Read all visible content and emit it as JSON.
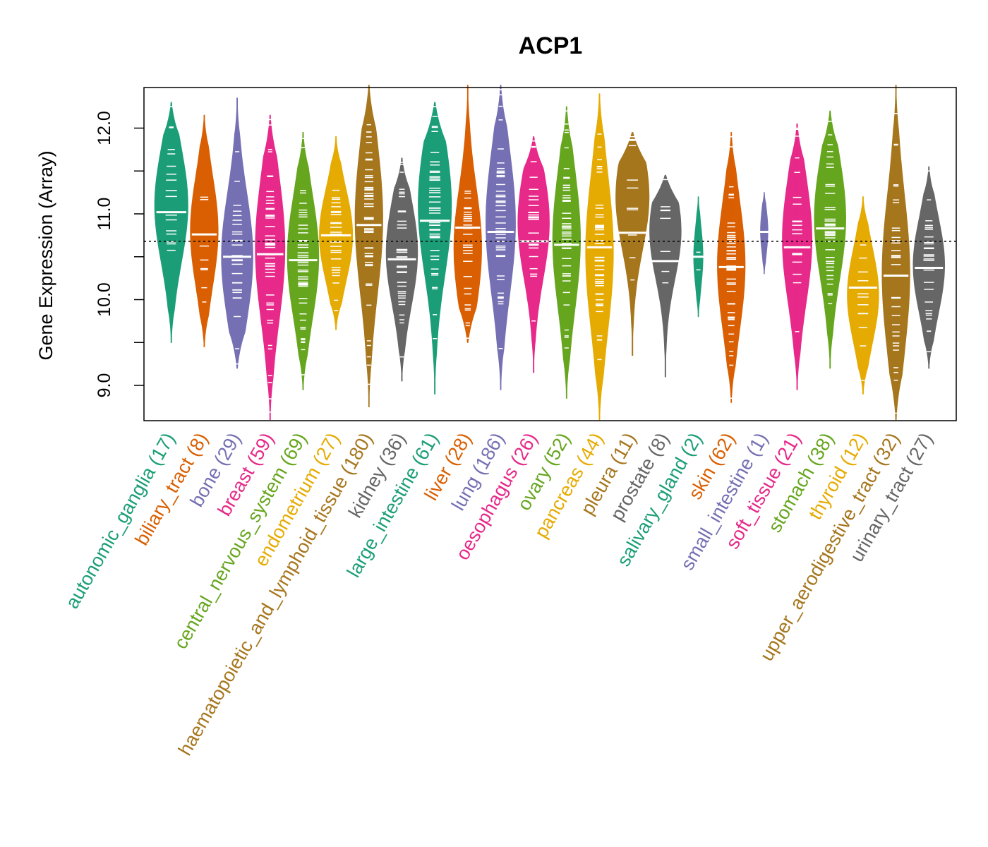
{
  "chart_data": {
    "type": "beanplot",
    "title": "ACP1",
    "xlabel": "",
    "ylabel": "Gene Expression (Array)",
    "ylim": [
      8.6,
      12.5
    ],
    "yticks": [
      9.0,
      9.5,
      10.0,
      10.5,
      11.0,
      11.5,
      12.0
    ],
    "ytick_labels": [
      "9.0",
      "10.0",
      "11.0",
      "12.0"
    ],
    "overall_median": 10.68,
    "grid": false,
    "legend": "none",
    "categories": [
      {
        "name": "autonomic_ganglia",
        "n": 17,
        "label": "autonomic_ganglia (17)",
        "color": "#1B9E77",
        "min": 9.5,
        "max": 12.3,
        "mode": 11.1,
        "width": 0.9,
        "median": 11.02
      },
      {
        "name": "biliary_tract",
        "n": 8,
        "label": "biliary_tract (8)",
        "color": "#D95F02",
        "min": 9.45,
        "max": 12.15,
        "mode": 10.8,
        "width": 0.75,
        "median": 10.76
      },
      {
        "name": "bone",
        "n": 29,
        "label": "bone (29)",
        "color": "#7570B3",
        "min": 9.2,
        "max": 12.35,
        "mode": 10.5,
        "width": 0.85,
        "median": 10.5
      },
      {
        "name": "breast",
        "n": 59,
        "label": "breast (59)",
        "color": "#E7298A",
        "min": 8.6,
        "max": 12.15,
        "mode": 10.6,
        "width": 0.8,
        "median": 10.53
      },
      {
        "name": "central_nervous_system",
        "n": 69,
        "label": "central_nervous_system (69)",
        "color": "#66A61E",
        "min": 8.95,
        "max": 11.95,
        "mode": 10.5,
        "width": 0.85,
        "median": 10.46
      },
      {
        "name": "endometrium",
        "n": 27,
        "label": "endometrium (27)",
        "color": "#E6AB02",
        "min": 9.65,
        "max": 11.9,
        "mode": 10.75,
        "width": 0.9,
        "median": 10.75
      },
      {
        "name": "haematopoietic_and_lymphoid_tissue",
        "n": 180,
        "label": "haematopoietic_and_lymphoid_tissue (180)",
        "color": "#A6761D",
        "min": 8.75,
        "max": 12.5,
        "mode": 10.95,
        "width": 0.75,
        "median": 10.87
      },
      {
        "name": "kidney",
        "n": 36,
        "label": "kidney (36)",
        "color": "#666666",
        "min": 9.05,
        "max": 11.65,
        "mode": 10.55,
        "width": 0.85,
        "median": 10.47
      },
      {
        "name": "large_intestine",
        "n": 61,
        "label": "large_intestine (61)",
        "color": "#1B9E77",
        "min": 8.9,
        "max": 12.3,
        "mode": 11.1,
        "width": 0.9,
        "median": 10.92
      },
      {
        "name": "liver",
        "n": 28,
        "label": "liver (28)",
        "color": "#D95F02",
        "min": 9.5,
        "max": 12.5,
        "mode": 10.6,
        "width": 0.75,
        "median": 10.84
      },
      {
        "name": "lung",
        "n": 186,
        "label": "lung (186)",
        "color": "#7570B3",
        "min": 8.95,
        "max": 12.5,
        "mode": 10.9,
        "width": 0.8,
        "median": 10.79
      },
      {
        "name": "oesophagus",
        "n": 26,
        "label": "oesophagus (26)",
        "color": "#E7298A",
        "min": 9.15,
        "max": 11.9,
        "mode": 10.9,
        "width": 0.85,
        "median": 10.68
      },
      {
        "name": "ovary",
        "n": 52,
        "label": "ovary (52)",
        "color": "#66A61E",
        "min": 8.85,
        "max": 12.25,
        "mode": 10.7,
        "width": 0.75,
        "median": 10.64
      },
      {
        "name": "pancreas",
        "n": 44,
        "label": "pancreas (44)",
        "color": "#E6AB02",
        "min": 8.6,
        "max": 12.4,
        "mode": 10.55,
        "width": 0.75,
        "median": 10.61
      },
      {
        "name": "pleura",
        "n": 11,
        "label": "pleura (11)",
        "color": "#A6761D",
        "min": 9.35,
        "max": 11.95,
        "mode": 11.2,
        "width": 0.9,
        "median": 10.78
      },
      {
        "name": "prostate",
        "n": 8,
        "label": "prostate (8)",
        "color": "#666666",
        "min": 9.1,
        "max": 11.45,
        "mode": 10.8,
        "width": 0.85,
        "median": 10.45
      },
      {
        "name": "salivary_gland",
        "n": 2,
        "label": "salivary_gland (2)",
        "color": "#1B9E77",
        "min": 9.8,
        "max": 11.2,
        "mode": 10.5,
        "width": 0.25,
        "median": 10.5
      },
      {
        "name": "skin",
        "n": 62,
        "label": "skin (62)",
        "color": "#D95F02",
        "min": 8.8,
        "max": 11.95,
        "mode": 10.4,
        "width": 0.75,
        "median": 10.38
      },
      {
        "name": "small_intestine",
        "n": 1,
        "label": "small_intestine (1)",
        "color": "#7570B3",
        "min": 10.3,
        "max": 11.25,
        "mode": 10.8,
        "width": 0.2,
        "median": 10.79
      },
      {
        "name": "soft_tissue",
        "n": 21,
        "label": "soft_tissue (21)",
        "color": "#E7298A",
        "min": 8.95,
        "max": 12.05,
        "mode": 10.7,
        "width": 0.8,
        "median": 10.61
      },
      {
        "name": "stomach",
        "n": 38,
        "label": "stomach (38)",
        "color": "#66A61E",
        "min": 9.2,
        "max": 12.2,
        "mode": 10.95,
        "width": 0.85,
        "median": 10.83
      },
      {
        "name": "thyroid",
        "n": 12,
        "label": "thyroid (12)",
        "color": "#E6AB02",
        "min": 8.9,
        "max": 11.2,
        "mode": 10.05,
        "width": 0.85,
        "median": 10.14
      },
      {
        "name": "upper_aerodigestive_tract",
        "n": 32,
        "label": "upper_aerodigestive_tract (32)",
        "color": "#A6761D",
        "min": 8.6,
        "max": 12.5,
        "mode": 10.3,
        "width": 0.75,
        "median": 10.28
      },
      {
        "name": "urinary_tract",
        "n": 27,
        "label": "urinary_tract (27)",
        "color": "#666666",
        "min": 9.2,
        "max": 11.55,
        "mode": 10.4,
        "width": 0.85,
        "median": 10.37
      }
    ]
  }
}
